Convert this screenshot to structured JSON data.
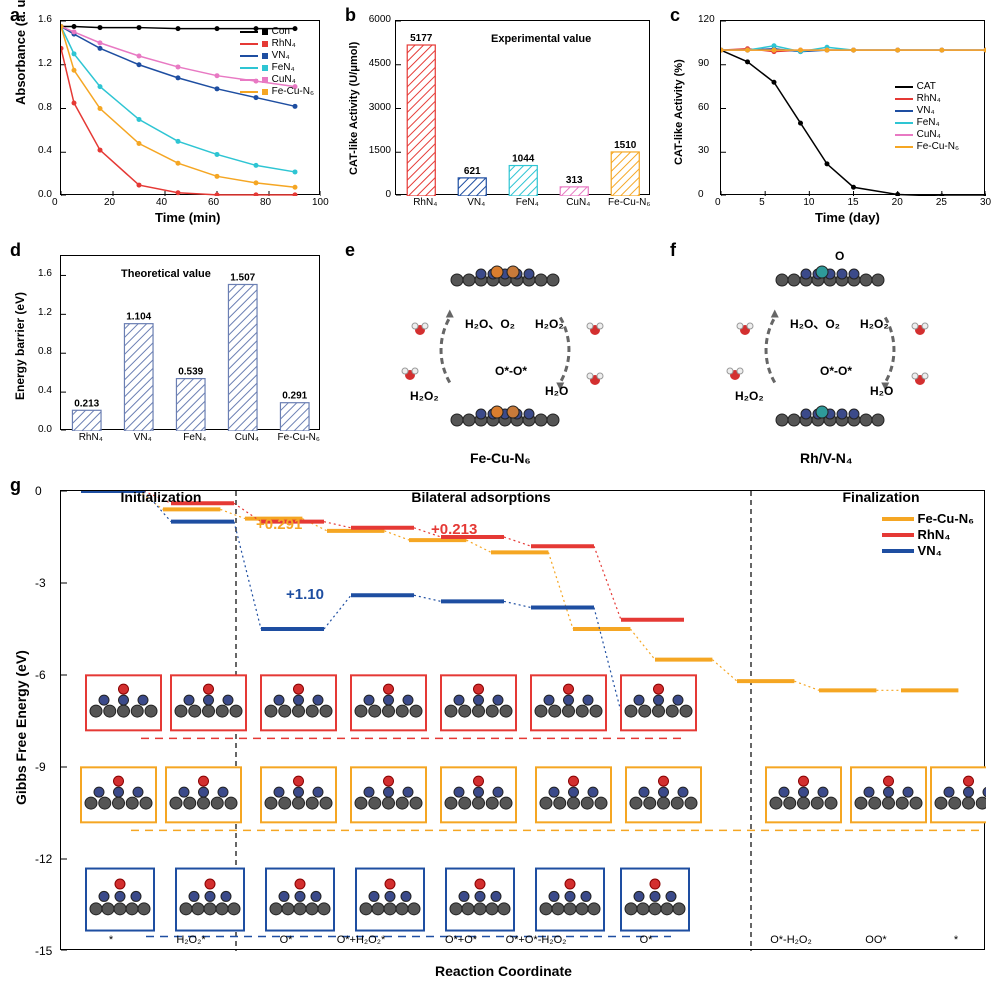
{
  "panels": {
    "a": {
      "label": "a",
      "xlabel": "Time (min)",
      "ylabel": "Absorbance (a. u.)",
      "xlim": [
        0,
        100
      ],
      "ylim": [
        0.0,
        1.6
      ],
      "xticks": [
        0,
        20,
        40,
        60,
        80,
        100
      ],
      "yticks": [
        0.0,
        0.4,
        0.8,
        1.2,
        1.6
      ],
      "series": [
        {
          "name": "Con",
          "color": "#000000",
          "x": [
            0,
            5,
            15,
            30,
            45,
            60,
            75,
            90
          ],
          "y": [
            1.55,
            1.55,
            1.54,
            1.54,
            1.53,
            1.53,
            1.53,
            1.53
          ]
        },
        {
          "name": "RhN₄",
          "color": "#e53935",
          "x": [
            0,
            5,
            15,
            30,
            45,
            60,
            75,
            90
          ],
          "y": [
            1.35,
            0.85,
            0.42,
            0.1,
            0.03,
            0.01,
            0.01,
            0.01
          ]
        },
        {
          "name": "VN₄",
          "color": "#1e4ea1",
          "x": [
            0,
            5,
            15,
            30,
            45,
            60,
            75,
            90
          ],
          "y": [
            1.55,
            1.48,
            1.35,
            1.2,
            1.08,
            0.98,
            0.9,
            0.82
          ]
        },
        {
          "name": "FeN₄",
          "color": "#2ec5d3",
          "x": [
            0,
            5,
            15,
            30,
            45,
            60,
            75,
            90
          ],
          "y": [
            1.55,
            1.3,
            1.0,
            0.7,
            0.5,
            0.38,
            0.28,
            0.22
          ]
        },
        {
          "name": "CuN₄",
          "color": "#e879c3",
          "x": [
            0,
            5,
            15,
            30,
            45,
            60,
            75,
            90
          ],
          "y": [
            1.55,
            1.5,
            1.4,
            1.28,
            1.18,
            1.1,
            1.05,
            1.0
          ]
        },
        {
          "name": "Fe-Cu-N₆",
          "color": "#f5a623",
          "x": [
            0,
            5,
            15,
            30,
            45,
            60,
            75,
            90
          ],
          "y": [
            1.55,
            1.15,
            0.8,
            0.48,
            0.3,
            0.18,
            0.12,
            0.08
          ]
        }
      ]
    },
    "b": {
      "label": "b",
      "xlabel": "",
      "ylabel": "CAT-like Activity (U/μmol)",
      "ylim": [
        0,
        6000
      ],
      "yticks": [
        0,
        1500,
        3000,
        4500,
        6000
      ],
      "annotation": "Experimental value",
      "categories": [
        "RhN₄",
        "VN₄",
        "FeN₄",
        "CuN₄",
        "Fe-Cu-N₆"
      ],
      "values": [
        5177,
        621,
        1044,
        313,
        1510
      ],
      "colors": [
        "#e53935",
        "#1e4ea1",
        "#2ec5d3",
        "#e879c3",
        "#f5a623"
      ]
    },
    "c": {
      "label": "c",
      "xlabel": "Time (day)",
      "ylabel": "CAT-like Activity (%)",
      "xlim": [
        0,
        30
      ],
      "ylim": [
        0,
        120
      ],
      "xticks": [
        0,
        5,
        10,
        15,
        20,
        25,
        30
      ],
      "yticks": [
        0,
        30,
        60,
        90,
        120
      ],
      "series": [
        {
          "name": "CAT",
          "color": "#000000",
          "x": [
            0,
            3,
            6,
            9,
            12,
            15,
            20,
            25,
            30
          ],
          "y": [
            100,
            92,
            78,
            50,
            22,
            6,
            1,
            0,
            0
          ]
        },
        {
          "name": "RhN₄",
          "color": "#e53935",
          "x": [
            0,
            3,
            6,
            9,
            12,
            15,
            20,
            25,
            30
          ],
          "y": [
            100,
            101,
            99,
            100,
            100,
            100,
            100,
            100,
            100
          ]
        },
        {
          "name": "VN₄",
          "color": "#1e4ea1",
          "x": [
            0,
            3,
            6,
            9,
            12,
            15,
            20,
            25,
            30
          ],
          "y": [
            100,
            100,
            101,
            99,
            100,
            100,
            100,
            100,
            100
          ]
        },
        {
          "name": "FeN₄",
          "color": "#2ec5d3",
          "x": [
            0,
            3,
            6,
            9,
            12,
            15,
            20,
            25,
            30
          ],
          "y": [
            100,
            100,
            103,
            99,
            102,
            100,
            100,
            100,
            100
          ]
        },
        {
          "name": "CuN₄",
          "color": "#e879c3",
          "x": [
            0,
            3,
            6,
            9,
            12,
            15,
            20,
            25,
            30
          ],
          "y": [
            100,
            100,
            100,
            100,
            100,
            100,
            100,
            100,
            100
          ]
        },
        {
          "name": "Fe-Cu-N₆",
          "color": "#f5a623",
          "x": [
            0,
            3,
            6,
            9,
            12,
            15,
            20,
            25,
            30
          ],
          "y": [
            100,
            100,
            100,
            100,
            100,
            100,
            100,
            100,
            100
          ]
        }
      ]
    },
    "d": {
      "label": "d",
      "xlabel": "",
      "ylabel": "Energy barrier (eV)",
      "ylim": [
        0,
        1.8
      ],
      "yticks": [
        0.0,
        0.4,
        0.8,
        1.2,
        1.6
      ],
      "annotation": "Theoretical value",
      "categories": [
        "RhN₄",
        "VN₄",
        "FeN₄",
        "CuN₄",
        "Fe-Cu-N₆"
      ],
      "values": [
        0.213,
        1.104,
        0.539,
        1.507,
        0.291
      ],
      "bar_color": "#6b7fb3"
    },
    "e": {
      "label": "e",
      "title": "Fe-Cu-N₆",
      "annotations": [
        "H₂O、O₂",
        "H₂O₂",
        "O*-O*",
        "H₂O",
        "H₂O₂"
      ]
    },
    "f": {
      "label": "f",
      "title": "Rh/V-N₄",
      "annotations": [
        "H₂O、O₂",
        "H₂O₂",
        "O*-O*",
        "H₂O",
        "H₂O₂",
        "O"
      ]
    },
    "g": {
      "label": "g",
      "xlabel": "Reaction Coordinate",
      "ylabel": "Gibbs Free Energy (eV)",
      "ylim": [
        -15,
        0
      ],
      "yticks": [
        0,
        -3,
        -6,
        -9,
        -12,
        -15
      ],
      "sections": [
        "Initialization",
        "Bilateral adsorptions",
        "Finalization"
      ],
      "legend": [
        {
          "name": "Fe-Cu-N₆",
          "color": "#f5a623"
        },
        {
          "name": "RhN₄",
          "color": "#e53935"
        },
        {
          "name": "VN₄",
          "color": "#1e4ea1"
        }
      ],
      "annotations": {
        "fecu": {
          "text": "+0.291",
          "color": "#f5a623"
        },
        "rh": {
          "text": "+0.213",
          "color": "#e53935"
        },
        "v": {
          "text": "+1.10",
          "color": "#1e4ea1"
        }
      },
      "species": [
        "*",
        "H₂O₂*",
        "O*",
        "O*+H₂O₂*",
        "O*+O*",
        "O*+O*-H₂O₂",
        "O*",
        "O*-H₂O₂",
        "OO*",
        "*"
      ],
      "steps": {
        "fecu": [
          0,
          -0.6,
          -0.9,
          -1.3,
          -1.6,
          -2.0,
          -4.5,
          -5.5,
          -6.2,
          -6.5,
          -6.5
        ],
        "rh": [
          0,
          -0.4,
          -1.0,
          -1.2,
          -1.5,
          -1.8,
          -4.2
        ],
        "v": [
          0,
          -1.0,
          -4.5,
          -3.4,
          -3.6,
          -3.8,
          -7.2
        ]
      }
    }
  },
  "colors": {
    "text": "#000000",
    "grid": "#cccccc",
    "axis": "#000000"
  }
}
